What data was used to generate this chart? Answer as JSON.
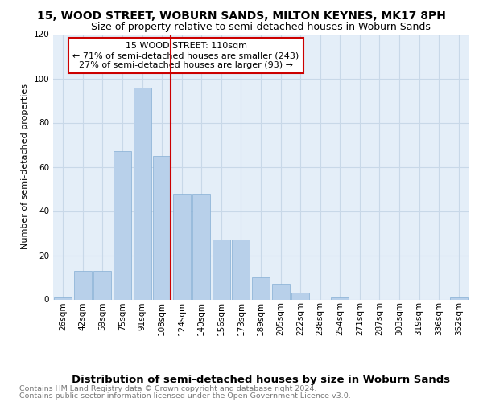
{
  "title": "15, WOOD STREET, WOBURN SANDS, MILTON KEYNES, MK17 8PH",
  "subtitle": "Size of property relative to semi-detached houses in Woburn Sands",
  "xlabel": "Distribution of semi-detached houses by size in Woburn Sands",
  "ylabel": "Number of semi-detached properties",
  "footnote1": "Contains HM Land Registry data © Crown copyright and database right 2024.",
  "footnote2": "Contains public sector information licensed under the Open Government Licence v3.0.",
  "annotation_title": "15 WOOD STREET: 110sqm",
  "annotation_line1": "← 71% of semi-detached houses are smaller (243)",
  "annotation_line2": "27% of semi-detached houses are larger (93) →",
  "bar_labels": [
    "26sqm",
    "42sqm",
    "59sqm",
    "75sqm",
    "91sqm",
    "108sqm",
    "124sqm",
    "140sqm",
    "156sqm",
    "173sqm",
    "189sqm",
    "205sqm",
    "222sqm",
    "238sqm",
    "254sqm",
    "271sqm",
    "287sqm",
    "303sqm",
    "319sqm",
    "336sqm",
    "352sqm"
  ],
  "bar_values": [
    1,
    13,
    13,
    67,
    96,
    65,
    48,
    48,
    27,
    27,
    10,
    7,
    3,
    0,
    1,
    0,
    0,
    0,
    0,
    0,
    1
  ],
  "bar_color": "#b8d0ea",
  "bar_edge_color": "#85aed4",
  "vline_color": "#cc0000",
  "ylim": [
    0,
    120
  ],
  "yticks": [
    0,
    20,
    40,
    60,
    80,
    100,
    120
  ],
  "grid_color": "#c8d8e8",
  "background_color": "#e4eef8",
  "box_color": "#cc0000",
  "title_fontsize": 10,
  "subtitle_fontsize": 9,
  "ylabel_fontsize": 8,
  "xlabel_fontsize": 9.5,
  "tick_fontsize": 7.5,
  "annotation_fontsize": 8,
  "footnote_fontsize": 6.8
}
